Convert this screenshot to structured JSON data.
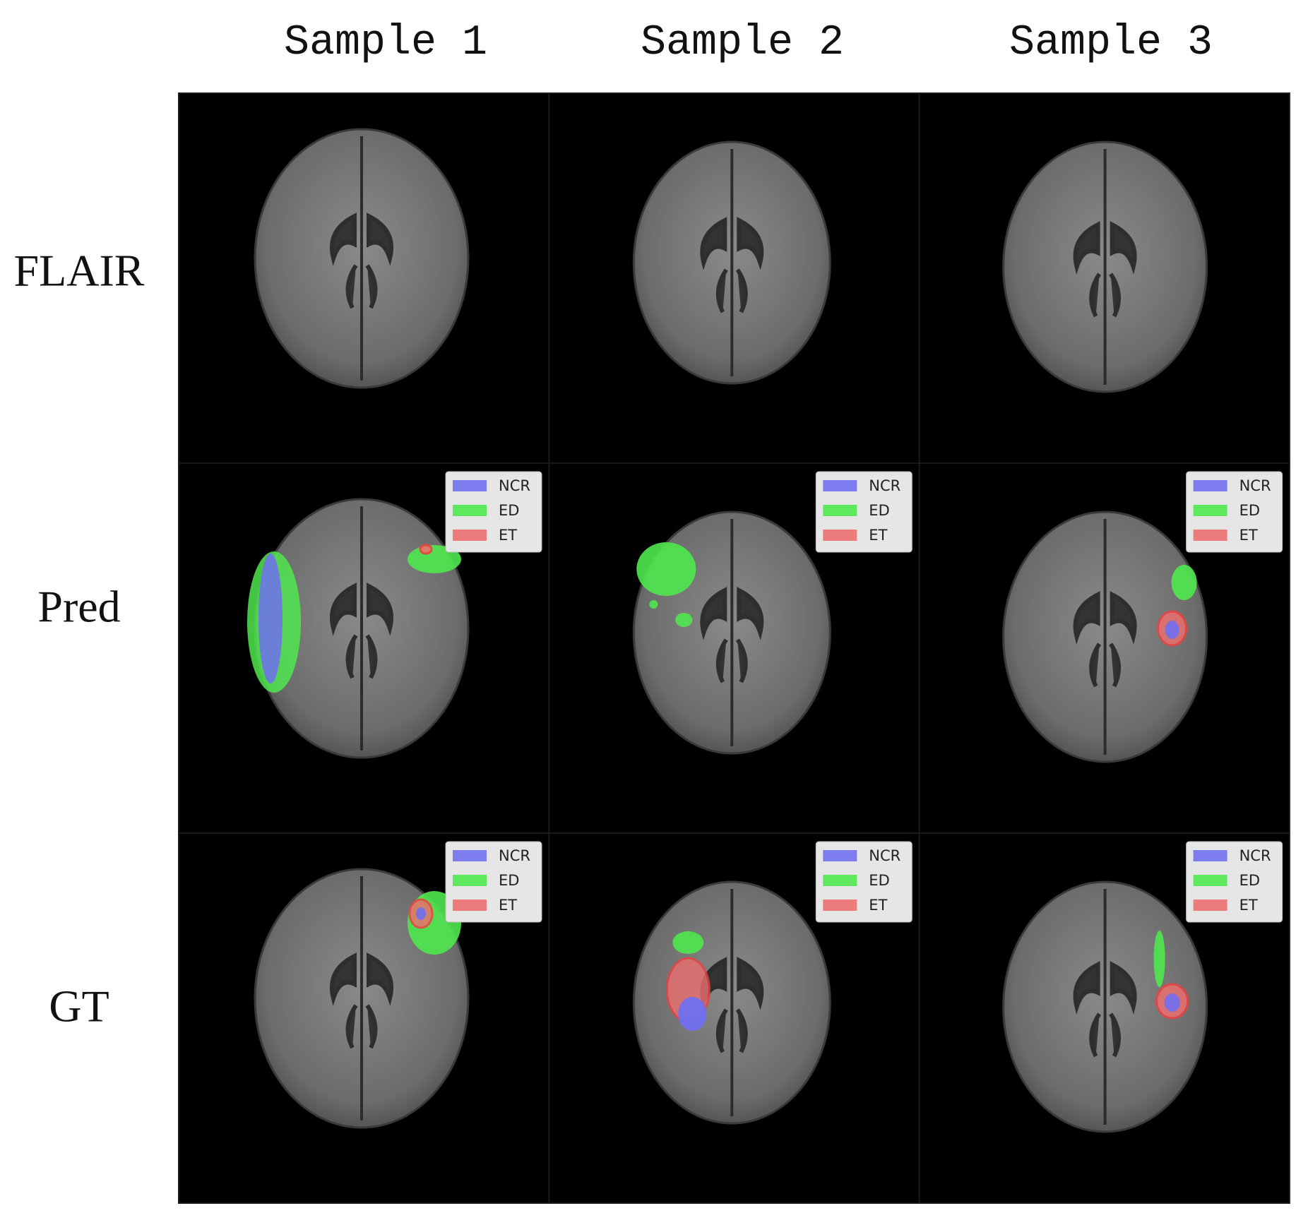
{
  "columns": [
    "Sample 1",
    "Sample 2",
    "Sample 3"
  ],
  "rows": [
    "FLAIR",
    "Pred",
    "GT"
  ],
  "legend": [
    {
      "label": "NCR",
      "color": "#7070f0"
    },
    {
      "label": "ED",
      "color": "#4fe84f"
    },
    {
      "label": "ET",
      "color": "#ec6f6f"
    }
  ]
}
